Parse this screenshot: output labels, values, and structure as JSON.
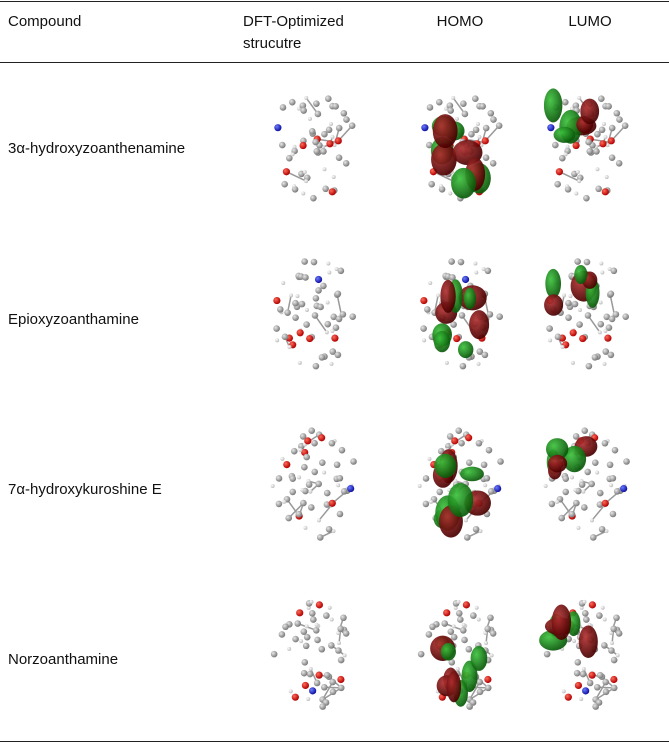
{
  "table": {
    "header": [
      "Compound",
      "DFT-Optimized strucutre",
      "HOMO",
      "LUMO"
    ],
    "rows": [
      [
        "3α-hydroxyzoanthenamine"
      ],
      [
        "Epioxyzoanthamine"
      ],
      [
        "7α-hydroxykuroshine E"
      ],
      [
        "Norzoanthamine"
      ]
    ]
  }
}
